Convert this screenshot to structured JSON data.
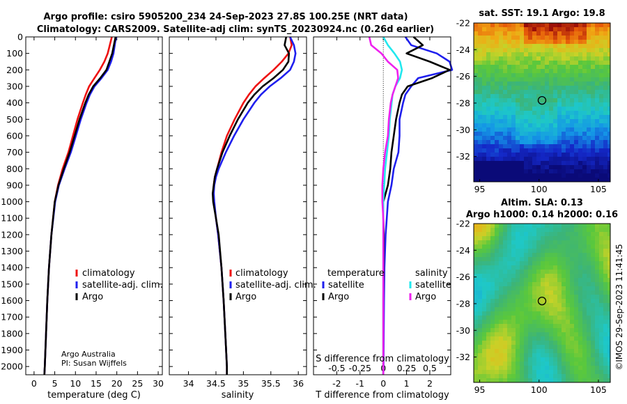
{
  "title_line1": "Argo profile: csiro 5905200_234 24-Sep-2023 27.8S 100.25E (NRT data)",
  "title_line2": "Climatology: CARS2009. Satellite-adj clim: synTS_20230924.nc (0.26d earlier)",
  "depth_ticks": [
    0,
    100,
    200,
    300,
    400,
    500,
    600,
    700,
    800,
    900,
    1000,
    1100,
    1200,
    1300,
    1400,
    1500,
    1600,
    1700,
    1800,
    1900,
    2000
  ],
  "colors": {
    "climatology": "#ee1111",
    "satellite": "#1f1fee",
    "argo": "#000000",
    "sal_satellite": "#22e8ee",
    "sal_argo": "#ee22ee"
  },
  "credit": {
    "line1": "Argo Australia",
    "line2": "PI: Susan Wijffels"
  },
  "stamp": "©IMOS 29-Sep-2023 11:41:45",
  "chart_data": [
    {
      "type": "line",
      "title": "",
      "xlabel": "temperature (deg C)",
      "ylabel": "",
      "xlim": [
        -2,
        31
      ],
      "ylim": [
        2050,
        0
      ],
      "xticks": [
        0,
        5,
        10,
        15,
        20,
        25,
        30
      ],
      "legend": [
        "climatology",
        "satellite-adj. clim.",
        "Argo"
      ],
      "legend_position": "right",
      "series": [
        {
          "name": "climatology",
          "depth": [
            0,
            50,
            100,
            150,
            200,
            250,
            300,
            350,
            400,
            500,
            600,
            700,
            800,
            900,
            1000,
            1200,
            1400,
            1600,
            1800,
            2000,
            2050
          ],
          "values": [
            18.8,
            18.3,
            17.8,
            17.0,
            15.9,
            14.6,
            13.3,
            12.5,
            11.8,
            10.5,
            9.4,
            8.3,
            6.9,
            5.8,
            5.0,
            4.2,
            3.6,
            3.2,
            2.9,
            2.6,
            2.5
          ]
        },
        {
          "name": "satellite-adj. clim.",
          "depth": [
            0,
            50,
            100,
            150,
            200,
            250,
            300,
            350,
            400,
            500,
            600,
            700,
            800,
            900,
            1000,
            1200,
            1400,
            1600,
            1800,
            2000,
            2050
          ],
          "values": [
            19.8,
            19.5,
            19.2,
            18.6,
            17.8,
            16.3,
            14.6,
            13.5,
            12.7,
            11.3,
            10.1,
            8.9,
            7.4,
            6.0,
            5.1,
            4.2,
            3.6,
            3.2,
            2.9,
            2.6,
            2.5
          ]
        },
        {
          "name": "Argo",
          "depth": [
            0,
            50,
            100,
            150,
            200,
            250,
            300,
            350,
            400,
            500,
            600,
            700,
            800,
            900,
            1000,
            1200,
            1400,
            1600,
            1800,
            2000,
            2050
          ],
          "values": [
            19.7,
            19.3,
            18.9,
            18.2,
            17.5,
            16.0,
            14.3,
            13.2,
            12.4,
            11.0,
            9.8,
            8.6,
            7.2,
            5.9,
            5.0,
            4.2,
            3.6,
            3.2,
            2.9,
            2.6,
            2.5
          ]
        }
      ]
    },
    {
      "type": "line",
      "title": "",
      "xlabel": "salinity",
      "ylabel": "",
      "xlim": [
        33.65,
        36.15
      ],
      "ylim": [
        2050,
        0
      ],
      "xticks": [
        34,
        34.5,
        35,
        35.5,
        36
      ],
      "xticklabels": [
        "34",
        "34.5",
        "35",
        "35.5",
        "36"
      ],
      "legend": [
        "climatology",
        "satellite-adj. clim.",
        "Argo"
      ],
      "legend_position": "right",
      "series": [
        {
          "name": "climatology",
          "depth": [
            0,
            50,
            100,
            150,
            200,
            250,
            300,
            350,
            400,
            500,
            600,
            700,
            800,
            850,
            900,
            950,
            1000,
            1100,
            1200,
            1400,
            1600,
            1800,
            2000,
            2050
          ],
          "values": [
            35.85,
            35.88,
            35.82,
            35.7,
            35.55,
            35.38,
            35.22,
            35.1,
            35.0,
            34.84,
            34.7,
            34.6,
            34.52,
            34.48,
            34.46,
            34.45,
            34.46,
            34.5,
            34.54,
            34.6,
            34.64,
            34.67,
            34.7,
            34.7
          ]
        },
        {
          "name": "satellite-adj. clim.",
          "depth": [
            0,
            50,
            100,
            150,
            200,
            250,
            300,
            350,
            400,
            500,
            600,
            700,
            800,
            850,
            900,
            950,
            1000,
            1100,
            1200,
            1400,
            1600,
            1800,
            2000,
            2050
          ],
          "values": [
            35.85,
            35.92,
            35.95,
            35.92,
            35.85,
            35.68,
            35.48,
            35.32,
            35.2,
            35.0,
            34.83,
            34.68,
            34.55,
            34.5,
            34.47,
            34.46,
            34.47,
            34.5,
            34.54,
            34.6,
            34.64,
            34.67,
            34.7,
            34.7
          ]
        },
        {
          "name": "Argo",
          "depth": [
            0,
            50,
            100,
            150,
            200,
            250,
            300,
            350,
            400,
            500,
            600,
            700,
            800,
            850,
            900,
            950,
            1000,
            1100,
            1200,
            1400,
            1600,
            1800,
            2000,
            2050
          ],
          "values": [
            35.78,
            35.75,
            35.83,
            35.82,
            35.72,
            35.55,
            35.35,
            35.2,
            35.08,
            34.9,
            34.75,
            34.62,
            34.52,
            34.48,
            34.46,
            34.44,
            34.45,
            34.5,
            34.55,
            34.6,
            34.64,
            34.67,
            34.7,
            34.7
          ]
        }
      ]
    },
    {
      "type": "line",
      "title": "",
      "xlabel": "T difference from climatology",
      "x2label": "S difference from climatology",
      "ylabel": "",
      "xlim": [
        -3.0,
        2.9
      ],
      "ylim": [
        2050,
        0
      ],
      "xticks": [
        -2,
        -1,
        0,
        1,
        2
      ],
      "s_xlim": [
        -0.75,
        0.725
      ],
      "s_xticks": [
        -0.5,
        -0.25,
        0,
        0.25,
        0.5
      ],
      "s_xticklabels": [
        "-0.5",
        "-0.25",
        "0",
        "0.25",
        "0.5"
      ],
      "legend_groups": [
        {
          "title": "temperature",
          "entries": [
            "satellite",
            "Argo"
          ]
        },
        {
          "title": "salinity",
          "entries": [
            "satellite",
            "Argo"
          ]
        }
      ],
      "legend_position": "bottom",
      "series": [
        {
          "name": "satellite",
          "quantity": "temperature",
          "depth": [
            0,
            50,
            100,
            150,
            200,
            250,
            300,
            350,
            400,
            500,
            600,
            700,
            800,
            900,
            1000,
            1100,
            1200,
            1400,
            1600,
            1800,
            2000,
            2050
          ],
          "values": [
            0.95,
            1.2,
            2.3,
            2.85,
            3.0,
            1.5,
            1.2,
            0.95,
            0.85,
            0.7,
            0.7,
            0.65,
            0.45,
            0.35,
            0.2,
            0.15,
            0.1,
            0.05,
            0.03,
            0.02,
            0.01,
            0.0
          ]
        },
        {
          "name": "Argo",
          "quantity": "temperature",
          "depth": [
            0,
            50,
            100,
            150,
            200,
            250,
            300,
            350,
            400,
            500,
            600,
            700,
            800,
            900,
            1000,
            1100,
            1200,
            1400,
            1600,
            1800,
            2000,
            2050
          ],
          "values": [
            1.3,
            1.7,
            1.0,
            2.0,
            2.85,
            2.1,
            1.05,
            0.8,
            0.7,
            0.55,
            0.45,
            0.35,
            0.3,
            0.2,
            0.0,
            0.0,
            0.02,
            0.01,
            0.0,
            0.0,
            0.0,
            0.0
          ]
        },
        {
          "name": "satellite",
          "quantity": "salinity",
          "depth": [
            0,
            50,
            100,
            150,
            200,
            250,
            300,
            350,
            400,
            500,
            600,
            700,
            800,
            900,
            1000,
            1100,
            1200,
            1400,
            1600,
            1800,
            2000,
            2050
          ],
          "values": [
            0.0,
            0.05,
            0.12,
            0.18,
            0.2,
            0.18,
            0.13,
            0.1,
            0.09,
            0.07,
            0.06,
            0.04,
            0.02,
            0.01,
            0.0,
            0.0,
            0.0,
            0.0,
            0.0,
            0.0,
            0.0,
            0.0
          ]
        },
        {
          "name": "Argo",
          "quantity": "salinity",
          "depth": [
            0,
            50,
            100,
            150,
            200,
            250,
            300,
            350,
            400,
            500,
            600,
            700,
            800,
            900,
            1000,
            1100,
            1200,
            1400,
            1600,
            1800,
            2000,
            2050
          ],
          "values": [
            -0.15,
            -0.13,
            -0.02,
            0.05,
            0.15,
            0.16,
            0.13,
            0.1,
            0.08,
            0.06,
            0.05,
            0.02,
            0.0,
            -0.01,
            -0.01,
            0.0,
            0.0,
            0.0,
            0.0,
            0.0,
            0.0,
            0.0
          ]
        }
      ]
    },
    {
      "type": "heatmap",
      "title": "sat. SST: 19.1 Argo: 19.8",
      "xlim": [
        94.5,
        106
      ],
      "ylim": [
        -33.9,
        -22
      ],
      "xticks": [
        95,
        100,
        105
      ],
      "yticks": [
        -22,
        -24,
        -26,
        -28,
        -30,
        -32
      ],
      "marker": {
        "lon": 100.25,
        "lat": -27.8
      }
    },
    {
      "type": "heatmap",
      "title_line1": "Altim. SLA: 0.13",
      "title_line2": "Argo h1000: 0.14 h2000: 0.16",
      "xlim": [
        94.5,
        106
      ],
      "ylim": [
        -33.9,
        -22
      ],
      "xticks": [
        95,
        100,
        105
      ],
      "yticks": [
        -22,
        -24,
        -26,
        -28,
        -30,
        -32
      ],
      "marker": {
        "lon": 100.25,
        "lat": -27.8
      }
    }
  ]
}
